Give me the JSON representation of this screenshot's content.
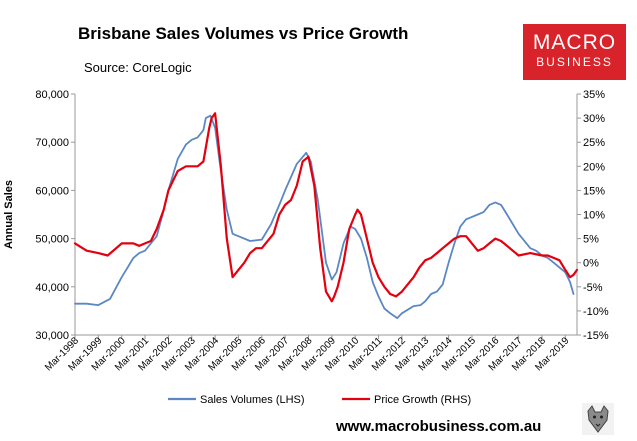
{
  "brand": {
    "logo_line1": "MACRO",
    "logo_line2": "BUSINESS",
    "logo_color": "#d9232b",
    "footer_url": "www.macrobusiness.com.au",
    "mascot_icon": "wolf-mascot-icon"
  },
  "chart_data": {
    "type": "line",
    "title": "Brisbane Sales Volumes vs Price Growth",
    "subtitle": "Source: CoreLogic",
    "ylabel": "Annual Sales",
    "ylabel_right": "",
    "xlabel": "",
    "x_tick_labels": [
      "Mar-1998",
      "Mar-1999",
      "Mar-2000",
      "Mar-2001",
      "Mar-2002",
      "Mar-2003",
      "Mar-2004",
      "Mar-2005",
      "Mar-2006",
      "Mar-2007",
      "Mar-2008",
      "Mar-2009",
      "Mar-2010",
      "Mar-2011",
      "Mar-2012",
      "Mar-2013",
      "Mar-2014",
      "Mar-2015",
      "Mar-2016",
      "Mar-2017",
      "Mar-2018",
      "Mar-2019"
    ],
    "x_range": [
      1998.0,
      2019.5
    ],
    "y_left": {
      "min": 30000,
      "max": 80000,
      "step": 10000,
      "tick_labels": [
        "30,000",
        "40,000",
        "50,000",
        "60,000",
        "70,000",
        "80,000"
      ]
    },
    "y_right": {
      "min": -15,
      "max": 35,
      "step": 5,
      "tick_labels": [
        "-15%",
        "-10%",
        "-5%",
        "0%",
        "5%",
        "10%",
        "15%",
        "20%",
        "25%",
        "30%",
        "35%"
      ]
    },
    "legend_position": "bottom-center",
    "series": [
      {
        "name": "Sales Volumes (LHS)",
        "axis": "left",
        "color": "#5b87c4",
        "x": [
          1998.0,
          1998.5,
          1999.0,
          1999.5,
          2000.0,
          2000.5,
          2000.75,
          2001.0,
          2001.5,
          2001.75,
          2002.0,
          2002.4,
          2002.75,
          2003.0,
          2003.25,
          2003.5,
          2003.6,
          2003.8,
          2004.0,
          2004.25,
          2004.5,
          2004.75,
          2005.0,
          2005.5,
          2006.0,
          2006.4,
          2006.75,
          2007.0,
          2007.5,
          2007.9,
          2008.1,
          2008.4,
          2008.75,
          2009.0,
          2009.2,
          2009.5,
          2009.8,
          2010.0,
          2010.25,
          2010.5,
          2010.75,
          2011.0,
          2011.25,
          2011.5,
          2011.8,
          2012.0,
          2012.5,
          2012.8,
          2013.0,
          2013.25,
          2013.5,
          2013.75,
          2014.0,
          2014.25,
          2014.5,
          2014.75,
          2015.0,
          2015.25,
          2015.5,
          2015.75,
          2016.0,
          2016.25,
          2016.5,
          2016.75,
          2017.0,
          2017.5,
          2017.75,
          2018.0,
          2018.25,
          2018.5,
          2018.75,
          2019.0,
          2019.2,
          2019.35
        ],
        "values": [
          36500,
          36500,
          36200,
          37500,
          42000,
          46000,
          47000,
          47500,
          50500,
          55000,
          60000,
          66500,
          69500,
          70500,
          71000,
          72500,
          75000,
          75500,
          73000,
          64000,
          56000,
          51000,
          50500,
          49500,
          49800,
          53000,
          57000,
          60000,
          65500,
          67800,
          66000,
          58000,
          45000,
          41500,
          43000,
          49000,
          52500,
          52000,
          50000,
          46000,
          41000,
          38000,
          35500,
          34500,
          33500,
          34500,
          36000,
          36200,
          37000,
          38500,
          39000,
          40500,
          45000,
          49000,
          52500,
          54000,
          54500,
          55000,
          55500,
          57000,
          57500,
          57000,
          55000,
          53000,
          51000,
          48000,
          47500,
          46500,
          46000,
          45000,
          44000,
          43000,
          41000,
          38500
        ]
      },
      {
        "name": "Price Growth (RHS)",
        "axis": "right",
        "color": "#e3000f",
        "x": [
          1998.0,
          1998.5,
          1999.0,
          1999.4,
          2000.0,
          2000.5,
          2000.75,
          2001.0,
          2001.25,
          2001.5,
          2001.8,
          2002.0,
          2002.4,
          2002.75,
          2003.0,
          2003.25,
          2003.5,
          2003.75,
          2003.85,
          2004.0,
          2004.25,
          2004.5,
          2004.75,
          2005.0,
          2005.25,
          2005.5,
          2005.75,
          2006.0,
          2006.5,
          2006.75,
          2007.0,
          2007.25,
          2007.5,
          2007.75,
          2008.0,
          2008.25,
          2008.5,
          2008.75,
          2009.0,
          2009.1,
          2009.25,
          2009.5,
          2009.75,
          2010.0,
          2010.1,
          2010.25,
          2010.5,
          2010.75,
          2011.0,
          2011.25,
          2011.5,
          2011.75,
          2012.0,
          2012.25,
          2012.5,
          2012.75,
          2013.0,
          2013.25,
          2013.5,
          2013.75,
          2014.0,
          2014.25,
          2014.5,
          2014.75,
          2015.0,
          2015.25,
          2015.5,
          2015.75,
          2016.0,
          2016.25,
          2016.5,
          2016.75,
          2017.0,
          2017.5,
          2018.0,
          2018.25,
          2018.5,
          2018.75,
          2019.0,
          2019.2,
          2019.35,
          2019.5
        ],
        "values": [
          4,
          2.5,
          2,
          1.5,
          4,
          4,
          3.5,
          4,
          4.5,
          7,
          11,
          15,
          19,
          20,
          20,
          20,
          21,
          28,
          30,
          31,
          20,
          5,
          -3,
          -1.5,
          0,
          2,
          3,
          3,
          6,
          10,
          12,
          13,
          16,
          21,
          22,
          16,
          3,
          -6,
          -8,
          -7,
          -5,
          0,
          7,
          10,
          11,
          10,
          5,
          0,
          -3,
          -5,
          -6.5,
          -7,
          -6,
          -4.5,
          -3,
          -1,
          0.5,
          1,
          2,
          3,
          4,
          5,
          5.5,
          5.5,
          4,
          2.5,
          3,
          4,
          5,
          4.5,
          3.5,
          2.5,
          1.5,
          2,
          1.5,
          1.5,
          1,
          0.5,
          -1.5,
          -3,
          -2.5,
          -1.5
        ]
      }
    ]
  }
}
